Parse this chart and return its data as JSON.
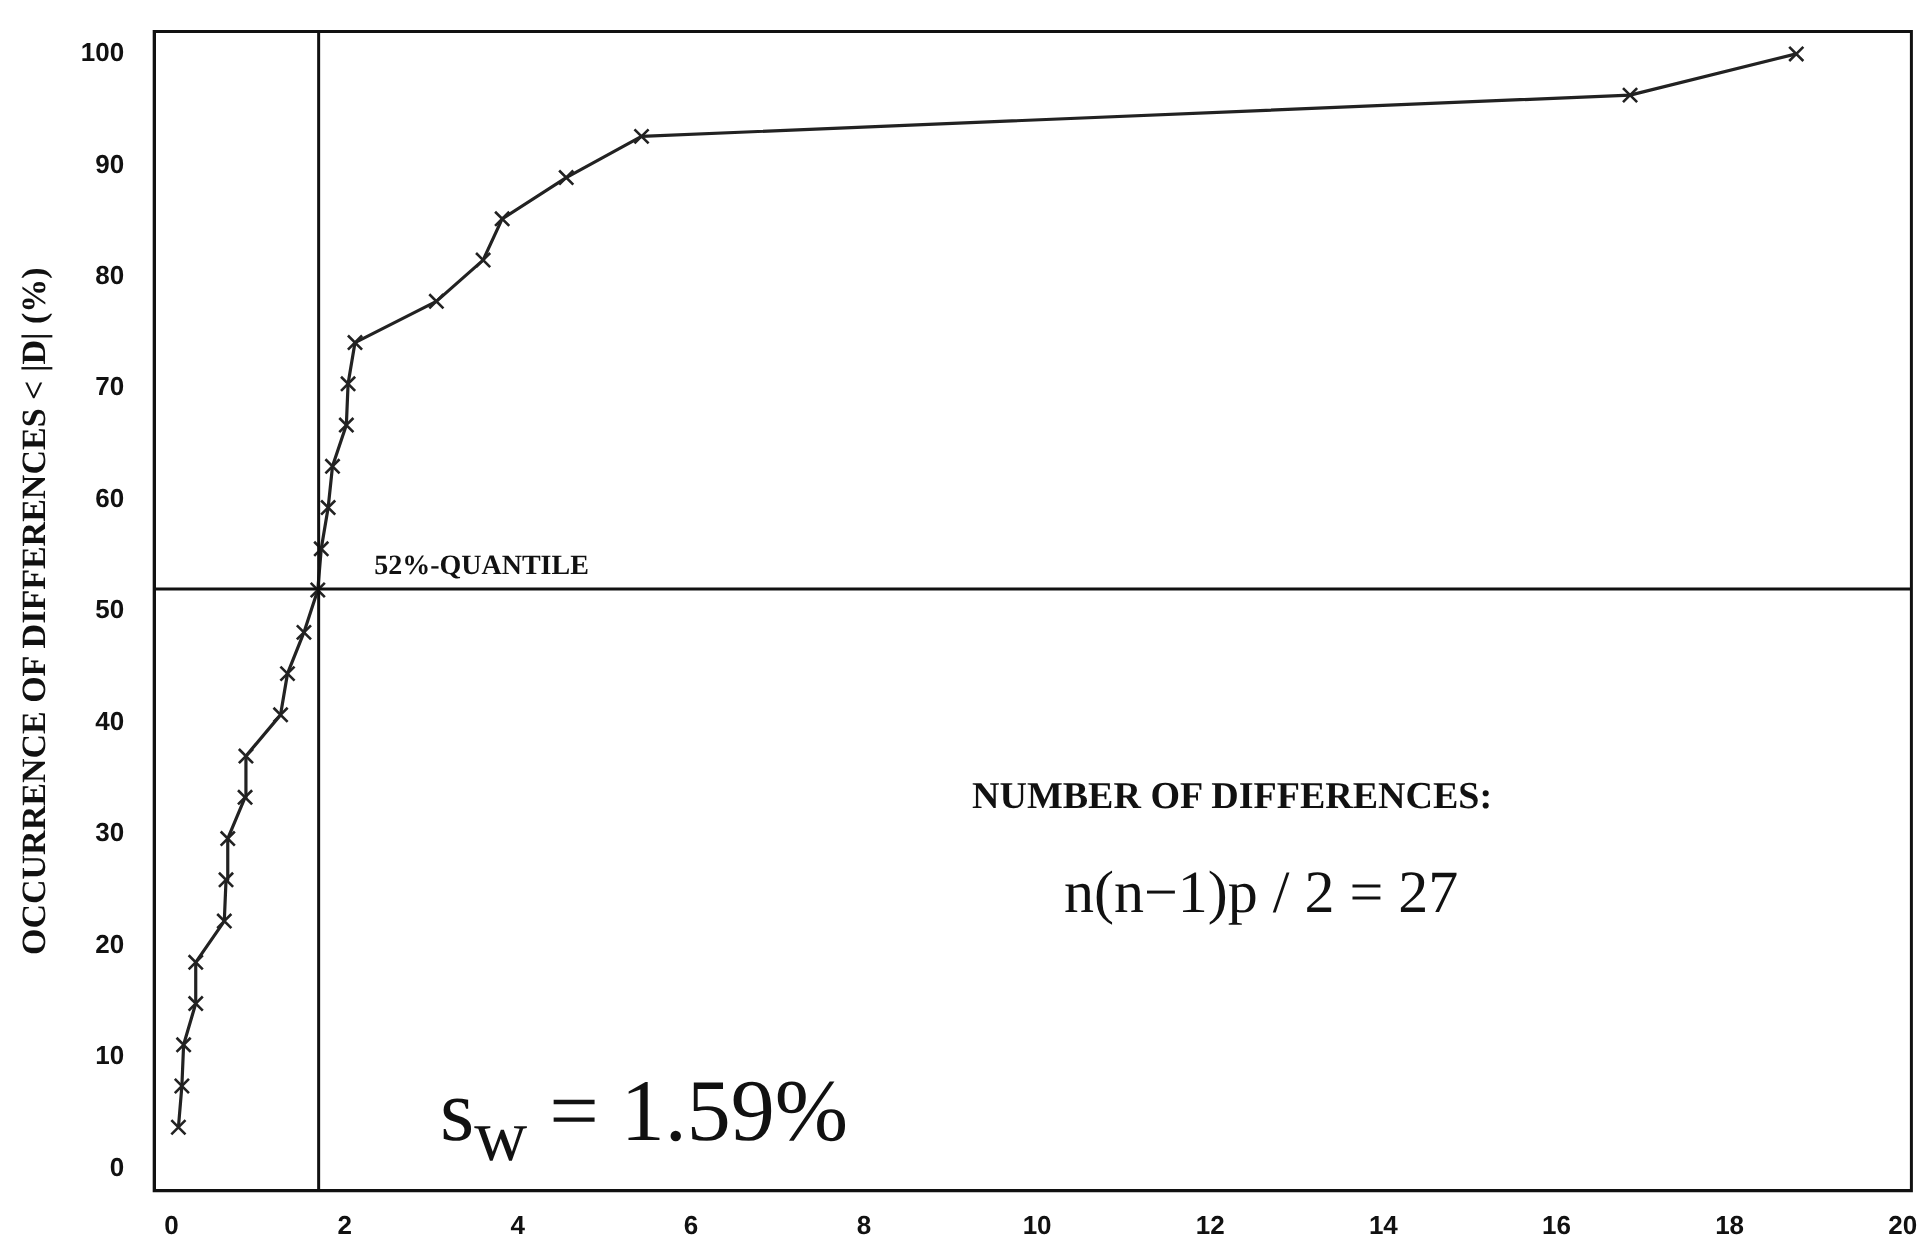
{
  "chart_data": {
    "type": "line",
    "ylabel": "OCCURRENCE OF DIFFERENCES < |D| (%)",
    "x": [
      0.08,
      0.12,
      0.14,
      0.28,
      0.28,
      0.61,
      0.63,
      0.65,
      0.85,
      0.86,
      1.26,
      1.34,
      1.53,
      1.69,
      1.73,
      1.81,
      1.86,
      2.02,
      2.04,
      2.12,
      3.06,
      3.6,
      3.82,
      4.56,
      5.43,
      16.85,
      18.77
    ],
    "series": [
      {
        "color": "#222222",
        "values": [
          3.7,
          7.4,
          11.1,
          14.8,
          18.5,
          22.2,
          25.9,
          29.6,
          33.3,
          37.0,
          40.7,
          44.4,
          48.1,
          51.9,
          55.6,
          59.3,
          63.0,
          66.7,
          70.4,
          74.1,
          77.8,
          81.5,
          85.2,
          88.9,
          92.6,
          96.3,
          100
        ]
      }
    ],
    "xlim": [
      -0.2,
      20.1
    ],
    "xticks": [
      0,
      2,
      4,
      6,
      8,
      10,
      12,
      14,
      16,
      18,
      20
    ],
    "ylim": [
      -2,
      102
    ],
    "yticks": [
      0,
      10,
      20,
      30,
      40,
      50,
      60,
      70,
      80,
      90,
      100
    ],
    "ref_lines": [
      {
        "axis": "y",
        "value": 52,
        "label": "52%-QUANTILE"
      },
      {
        "axis": "x",
        "value": 1.7
      }
    ],
    "annotations": [
      "NUMBER OF DIFFERENCES:",
      "n(n−1)p / 2 = 27",
      "s$_{w}$ = 1.59%"
    ],
    "grid": false,
    "legend": false,
    "marker": "cross",
    "line_style": "solid"
  }
}
